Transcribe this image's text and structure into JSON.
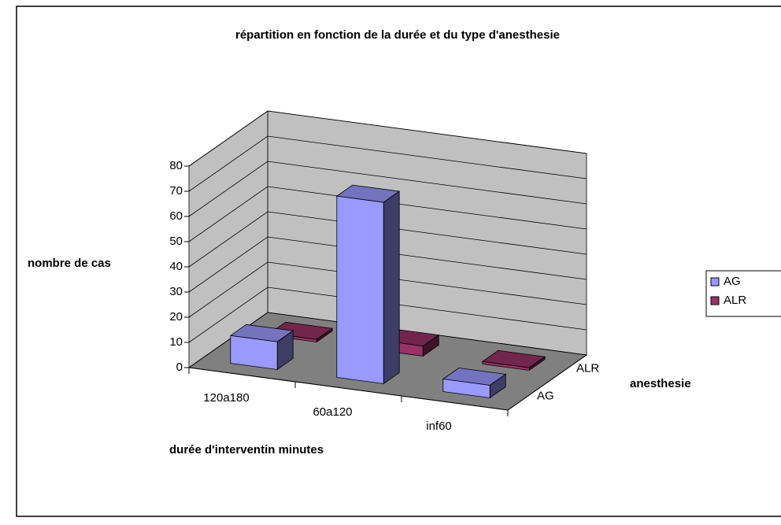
{
  "chart_data": {
    "type": "bar3d",
    "title": "répartition en fonction de la durée et du type d'anesthesie",
    "x_label": "durée d'interventin  minutes",
    "y_label": "nombre de cas",
    "z_label": "anesthesie",
    "categories": [
      "120a180",
      "60a120",
      "inf60"
    ],
    "series": [
      {
        "name": "AG",
        "color": "#9999ff",
        "values": [
          11,
          72,
          5
        ]
      },
      {
        "name": "ALR",
        "color": "#993366",
        "values": [
          1,
          4,
          1
        ]
      }
    ],
    "ylim": [
      0,
      80
    ],
    "yticks": [
      0,
      10,
      20,
      30,
      40,
      50,
      60,
      70,
      80
    ],
    "grid": true,
    "legend": "right"
  }
}
